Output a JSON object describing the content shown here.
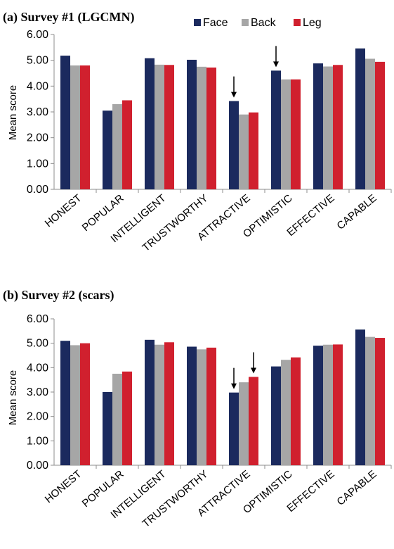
{
  "chart_data": [
    {
      "type": "bar",
      "title": "(a) Survey #1 (LGCMN)",
      "ylabel": "Mean score",
      "xlabel": "",
      "ylim": [
        0,
        6
      ],
      "yticks": [
        "0.00",
        "1.00",
        "2.00",
        "3.00",
        "4.00",
        "5.00",
        "6.00"
      ],
      "categories": [
        "HONEST",
        "POPULAR",
        "INTELLIGENT",
        "TRUSTWORTHY",
        "ATTRACTIVE",
        "OPTIMISTIC",
        "EFFECTIVE",
        "CAPABLE"
      ],
      "series": [
        {
          "name": "Face",
          "values": [
            5.18,
            3.05,
            5.08,
            5.02,
            3.42,
            4.6,
            4.88,
            5.46
          ]
        },
        {
          "name": "Back",
          "values": [
            4.8,
            3.3,
            4.83,
            4.75,
            2.9,
            4.26,
            4.76,
            5.06
          ]
        },
        {
          "name": "Leg",
          "values": [
            4.8,
            3.45,
            4.82,
            4.72,
            2.98,
            4.26,
            4.82,
            4.94
          ]
        }
      ],
      "annotations": [
        {
          "type": "arrow",
          "category": "ATTRACTIVE",
          "series": "Face"
        },
        {
          "type": "arrow",
          "category": "OPTIMISTIC",
          "series": "Face"
        }
      ],
      "legend": "top-right",
      "grid": false
    },
    {
      "type": "bar",
      "title": "(b) Survey #2 (scars)",
      "ylabel": "Mean score",
      "xlabel": "",
      "ylim": [
        0,
        6
      ],
      "yticks": [
        "0.00",
        "1.00",
        "2.00",
        "3.00",
        "4.00",
        "5.00",
        "6.00"
      ],
      "categories": [
        "HONEST",
        "POPULAR",
        "INTELLIGENT",
        "TRUSTWORTHY",
        "ATTRACTIVE",
        "OPTIMISTIC",
        "EFFECTIVE",
        "CAPABLE"
      ],
      "series": [
        {
          "name": "Face",
          "values": [
            5.1,
            3.0,
            5.14,
            4.86,
            2.98,
            4.05,
            4.9,
            5.56
          ]
        },
        {
          "name": "Back",
          "values": [
            4.92,
            3.75,
            4.94,
            4.75,
            3.4,
            4.32,
            4.94,
            5.26
          ]
        },
        {
          "name": "Leg",
          "values": [
            5.0,
            3.84,
            5.04,
            4.82,
            3.62,
            4.42,
            4.95,
            5.22
          ]
        }
      ],
      "annotations": [
        {
          "type": "arrow",
          "category": "ATTRACTIVE",
          "series": "Face"
        },
        {
          "type": "arrow",
          "category": "ATTRACTIVE",
          "series": "Leg"
        }
      ],
      "grid": false
    }
  ],
  "colors": {
    "Face": "#1b2a5e",
    "Back": "#a6a6a6",
    "Leg": "#d0202e",
    "axis": "#8c8c8c",
    "arrow": "#000000"
  }
}
